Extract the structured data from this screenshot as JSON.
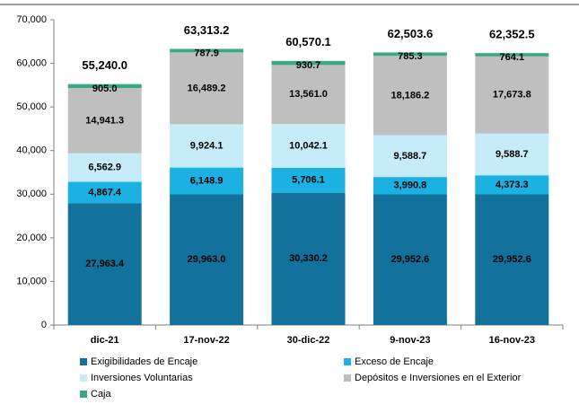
{
  "chart_data": {
    "type": "stacked_bar",
    "categories": [
      "dic-21",
      "17-nov-22",
      "30-dic-22",
      "9-nov-23",
      "16-nov-23"
    ],
    "series": [
      {
        "name": "Exigibilidades de Encaje",
        "color": "#13729c",
        "label_color": "#ffffff",
        "values": [
          27963.4,
          29963.0,
          30330.2,
          29952.6,
          29952.6
        ],
        "value_labels": [
          "27,963.4",
          "29,963.0",
          "30,330.2",
          "29,952.6",
          "29,952.6"
        ]
      },
      {
        "name": "Exceso de Encaje",
        "color": "#1bb1e3",
        "label_color": "#ffffff",
        "values": [
          4867.4,
          6148.9,
          5706.1,
          3990.8,
          4373.3
        ],
        "value_labels": [
          "4,867.4",
          "6,148.9",
          "5,706.1",
          "3,990.8",
          "4,373.3"
        ]
      },
      {
        "name": "Inversiones Voluntarias",
        "color": "#c6ecf9",
        "label_color": "#000000",
        "values": [
          6562.9,
          9924.1,
          10042.1,
          9588.7,
          9588.7
        ],
        "value_labels": [
          "6,562.9",
          "9,924.1",
          "10,042.1",
          "9,588.7",
          "9,588.7"
        ]
      },
      {
        "name": "Depósitos e Inversiones en el Exterior",
        "color": "#bfbfbf",
        "label_color": "#000000",
        "values": [
          14941.3,
          16489.2,
          13561.0,
          18186.2,
          17673.8
        ],
        "value_labels": [
          "14,941.3",
          "16,489.2",
          "13,561.0",
          "18,186.2",
          "17,673.8"
        ]
      },
      {
        "name": "Caja",
        "color": "#3aa981",
        "label_color": "#000000",
        "values": [
          905.0,
          787.9,
          930.7,
          785.3,
          764.1
        ],
        "value_labels": [
          "905.0",
          "787.9",
          "930.7",
          "785.3",
          "764.1"
        ]
      }
    ],
    "totals": [
      55240.0,
      63313.2,
      60570.1,
      62503.6,
      62352.5
    ],
    "total_labels": [
      "55,240.0",
      "63,313.2",
      "60,570.1",
      "62,503.6",
      "62,352.5"
    ],
    "ylim": [
      0,
      70000
    ],
    "yticks": [
      0,
      {
        "value": 10000,
        "label": "10,000"
      },
      {
        "value": 20000,
        "label": "20,000"
      },
      {
        "value": 30000,
        "label": "30,000"
      },
      {
        "value": 40000,
        "label": "40,000"
      },
      {
        "value": 50000,
        "label": "50,000"
      },
      {
        "value": 60000,
        "label": "60,000"
      },
      {
        "value": 70000,
        "label": "70,000"
      }
    ],
    "grid": false,
    "legend": "bottom"
  }
}
